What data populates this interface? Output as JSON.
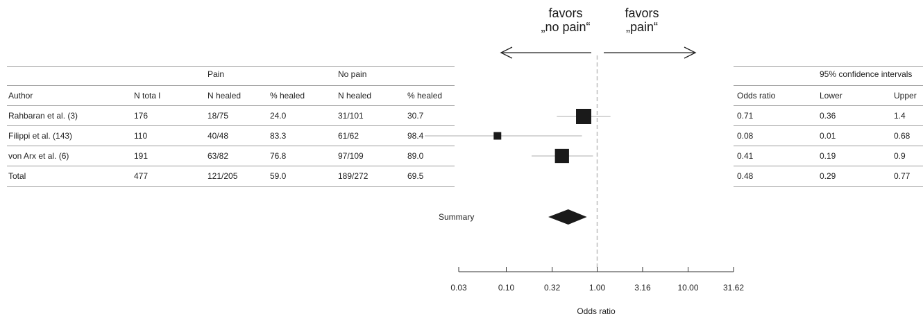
{
  "favors": {
    "left": [
      "favors",
      "„no pain“"
    ],
    "right": [
      "favors",
      "„pain“"
    ]
  },
  "left_table": {
    "group_headers": [
      "Pain",
      "No pain"
    ],
    "columns": [
      "Author",
      "N tota l",
      "N healed",
      "% healed",
      "N healed",
      "% healed"
    ],
    "rows": [
      [
        "Rahbaran et al. (3)",
        "176",
        "18/75",
        "24.0",
        "31/101",
        "30.7"
      ],
      [
        "Filippi et al. (143)",
        "110",
        "40/48",
        "83.3",
        "61/62",
        "98.4"
      ],
      [
        "von Arx et al. (6)",
        "191",
        "63/82",
        "76.8",
        "97/109",
        "89.0"
      ],
      [
        "Total",
        "477",
        "121/205",
        "59.0",
        "189/272",
        "69.5"
      ]
    ]
  },
  "right_table": {
    "group_header": "95% confidence intervals",
    "columns": [
      "Odds ratio",
      "Lower",
      "Upper"
    ],
    "rows": [
      [
        "0.71",
        "0.36",
        "1.4"
      ],
      [
        "0.08",
        "0.01",
        "0.68"
      ],
      [
        "0.41",
        "0.19",
        "0.9"
      ],
      [
        "0.48",
        "0.29",
        "0.77"
      ]
    ]
  },
  "chart_data": {
    "type": "forest",
    "xscale": "log",
    "xlabel": "Odds ratio",
    "xlim": [
      0.03,
      31.62
    ],
    "xticks": [
      0.03,
      0.1,
      0.32,
      1.0,
      3.16,
      10.0,
      31.62
    ],
    "xtick_labels": [
      "0.03",
      "0.10",
      "0.32",
      "1.00",
      "3.16",
      "10.00",
      "31.62"
    ],
    "reference_line": 1.0,
    "studies": [
      {
        "label": "Rahbaran et al. (3)",
        "or": 0.71,
        "lower": 0.36,
        "upper": 1.4,
        "weight": 1.0
      },
      {
        "label": "Filippi et al. (143)",
        "or": 0.08,
        "lower": 0.01,
        "upper": 0.68,
        "weight": 0.35
      },
      {
        "label": "von Arx et al. (6)",
        "or": 0.41,
        "lower": 0.19,
        "upper": 0.9,
        "weight": 0.9
      }
    ],
    "summary": {
      "label": "Summary",
      "or": 0.48,
      "lower": 0.29,
      "upper": 0.77
    },
    "colors": {
      "marker": "#1a1a1a",
      "ci_line": "#c8c8c8",
      "reference": "#bdbdbd",
      "axis": "#333333"
    }
  }
}
